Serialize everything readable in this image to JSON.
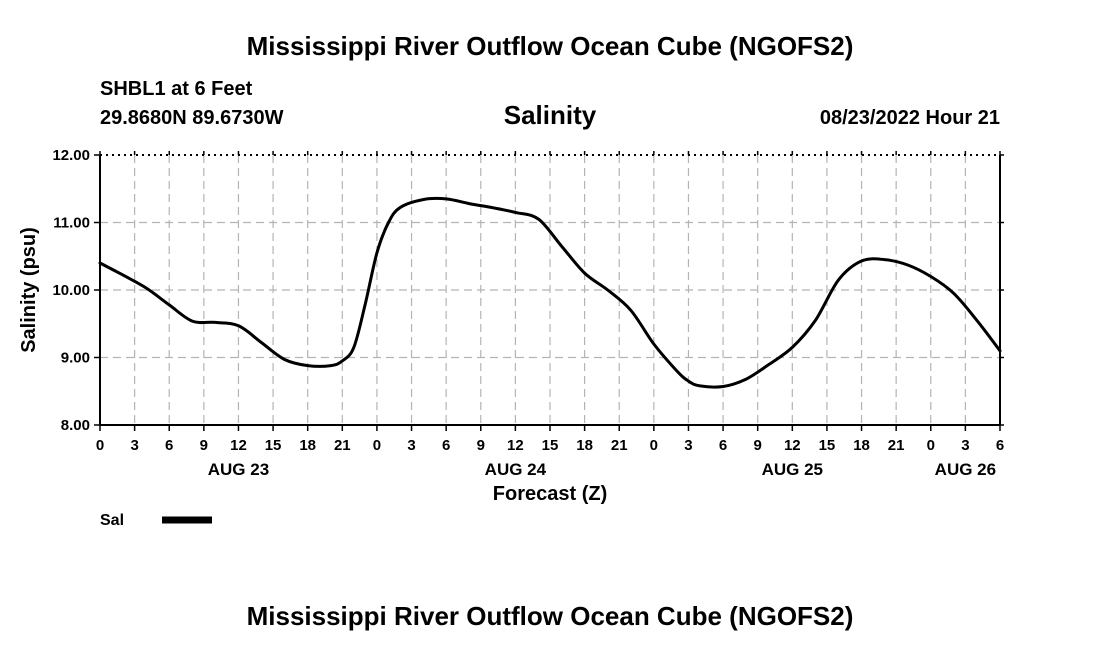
{
  "header": {
    "title": "Mississippi River Outflow Ocean Cube (NGOFS2)",
    "station": "SHBL1 at 6 Feet",
    "coords": "29.8680N  89.6730W",
    "datetime": "08/23/2022 Hour 21"
  },
  "footer": {
    "title": "Mississippi River Outflow Ocean Cube (NGOFS2)"
  },
  "legend": {
    "label": "Sal"
  },
  "colors": {
    "line": "#000000",
    "grid": "#b4b4b4",
    "background": "#ffffff"
  },
  "chart_data": {
    "type": "line",
    "title": "Salinity",
    "xlabel": "Forecast (Z)",
    "ylabel": "Salinity (psu)",
    "ylim": [
      8.0,
      12.0
    ],
    "xlim": [
      0,
      78
    ],
    "y_ticks": [
      "8.00",
      "9.00",
      "10.00",
      "11.00",
      "12.00"
    ],
    "y_tick_values": [
      8,
      9,
      10,
      11,
      12
    ],
    "x_tick_labels": [
      "0",
      "3",
      "6",
      "9",
      "12",
      "15",
      "18",
      "21",
      "0",
      "3",
      "6",
      "9",
      "12",
      "15",
      "18",
      "21",
      "0",
      "3",
      "6",
      "9",
      "12",
      "15",
      "18",
      "21",
      "0",
      "3",
      "6"
    ],
    "day_labels": [
      {
        "label": "AUG 23",
        "hour": 12
      },
      {
        "label": "AUG 24",
        "hour": 36
      },
      {
        "label": "AUG 25",
        "hour": 60
      },
      {
        "label": "AUG 26",
        "hour": 75
      }
    ],
    "grid": true,
    "legend_position": "bottom-left",
    "series": [
      {
        "name": "Sal",
        "x": [
          0,
          2,
          4,
          6,
          8,
          10,
          12,
          14,
          16,
          18,
          20,
          21,
          22,
          23,
          24,
          25,
          26,
          28,
          30,
          32,
          34,
          36,
          38,
          40,
          42,
          44,
          46,
          48,
          50,
          51,
          52,
          54,
          56,
          58,
          60,
          62,
          64,
          66,
          68,
          70,
          72,
          74,
          76,
          78
        ],
        "y": [
          10.4,
          10.22,
          10.03,
          9.78,
          9.54,
          9.52,
          9.47,
          9.22,
          8.97,
          8.88,
          8.88,
          8.95,
          9.15,
          9.8,
          10.55,
          11.0,
          11.22,
          11.34,
          11.35,
          11.28,
          11.22,
          11.15,
          11.05,
          10.65,
          10.25,
          10.0,
          9.7,
          9.2,
          8.8,
          8.65,
          8.58,
          8.57,
          8.68,
          8.9,
          9.15,
          9.55,
          10.15,
          10.43,
          10.45,
          10.37,
          10.2,
          9.95,
          9.55,
          9.1
        ]
      }
    ]
  }
}
